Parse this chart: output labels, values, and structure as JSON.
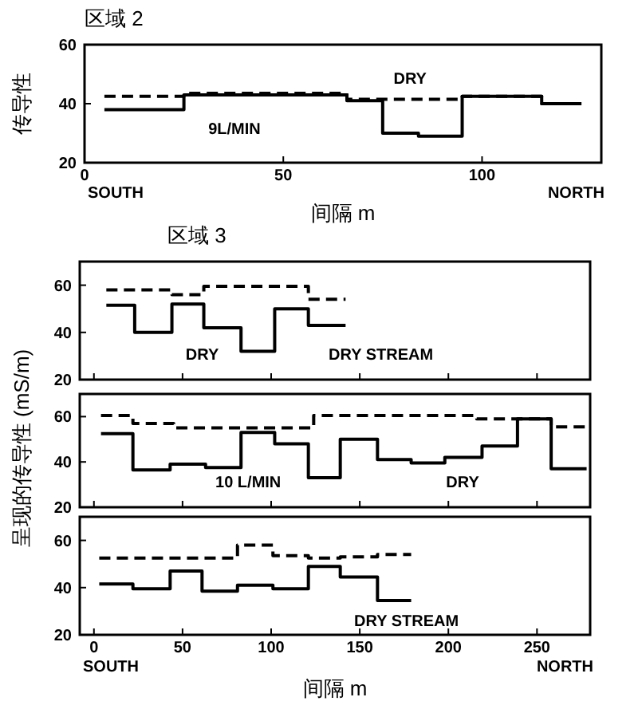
{
  "chart_data": [
    {
      "type": "step",
      "title": "区域 2",
      "ylabel": "传导性",
      "xlabel": "间隔 m",
      "xlim": [
        0,
        130
      ],
      "ylim": [
        20,
        60
      ],
      "xticks": [
        0,
        50,
        100
      ],
      "yticks": [
        20,
        40,
        60
      ],
      "annotations": [
        "SOUTH",
        "NORTH",
        "DRY",
        "9L/MIN"
      ],
      "series": [
        {
          "color": "#000000",
          "line_style": "solid",
          "x": [
            5,
            25,
            66,
            75,
            84,
            95,
            115,
            125
          ],
          "values": [
            38,
            43,
            41,
            30,
            29,
            42.5,
            40,
            40
          ]
        },
        {
          "color": "#000000",
          "line_style": "dashed",
          "x": [
            5,
            25,
            66,
            95,
            115,
            125
          ],
          "values": [
            42.5,
            43.5,
            41.5,
            42.5,
            40,
            40
          ]
        }
      ]
    },
    {
      "type": "step",
      "title": "区域 3",
      "xlim": [
        -8,
        280
      ],
      "ylim": [
        20,
        70
      ],
      "xticks": [
        0,
        50,
        100,
        150,
        200,
        250
      ],
      "yticks": [
        20,
        40,
        60
      ],
      "tick_labels": "y",
      "annotations": [
        "DRY",
        "DRY STREAM"
      ],
      "series": [
        {
          "color": "#000000",
          "line_style": "solid",
          "x": [
            7,
            23,
            44,
            62,
            83,
            102,
            121,
            142
          ],
          "values": [
            51.5,
            40,
            52,
            42,
            32,
            50,
            43,
            43
          ]
        },
        {
          "color": "#000000",
          "line_style": "dashed",
          "x": [
            7,
            44,
            62,
            121,
            142
          ],
          "values": [
            58,
            56,
            59.5,
            54,
            54
          ]
        }
      ]
    },
    {
      "type": "step",
      "ylabel": "呈现的传导性 (mS/m)",
      "xlim": [
        -8,
        280
      ],
      "ylim": [
        20,
        70
      ],
      "xticks": [
        0,
        50,
        100,
        150,
        200,
        250
      ],
      "yticks": [
        20,
        40,
        60
      ],
      "tick_labels": "y",
      "annotations": [
        "10 L/MIN",
        "DRY"
      ],
      "series": [
        {
          "color": "#000000",
          "line_style": "solid",
          "x": [
            4,
            22,
            43,
            63,
            83,
            102,
            121,
            139,
            160,
            179,
            198,
            219,
            239,
            258,
            278
          ],
          "values": [
            52.5,
            36.5,
            39,
            37.5,
            53,
            48,
            33,
            50,
            41,
            39.5,
            42,
            47,
            59,
            37,
            37
          ]
        },
        {
          "color": "#000000",
          "line_style": "dashed",
          "x": [
            4,
            22,
            45,
            124,
            216,
            258,
            278
          ],
          "values": [
            60.5,
            57,
            55,
            60.5,
            59,
            55.5,
            55.5
          ]
        }
      ]
    },
    {
      "type": "step",
      "xlabel": "间隔 m",
      "xlim": [
        -8,
        280
      ],
      "ylim": [
        20,
        70
      ],
      "xticks": [
        0,
        50,
        100,
        150,
        200,
        250
      ],
      "yticks": [
        20,
        40,
        60
      ],
      "annotations": [
        "SOUTH",
        "NORTH",
        "DRY STREAM"
      ],
      "series": [
        {
          "color": "#000000",
          "line_style": "solid",
          "x": [
            3,
            22,
            43,
            61,
            81,
            101,
            121,
            139,
            160,
            179
          ],
          "values": [
            41.5,
            39.5,
            47,
            38.5,
            41,
            39.5,
            49,
            44.5,
            34.5,
            34.5
          ]
        },
        {
          "color": "#000000",
          "line_style": "dashed",
          "x": [
            3,
            81,
            101,
            121,
            139,
            160,
            179
          ],
          "values": [
            52.5,
            58,
            53.5,
            52.5,
            53,
            54,
            54
          ]
        }
      ]
    }
  ]
}
